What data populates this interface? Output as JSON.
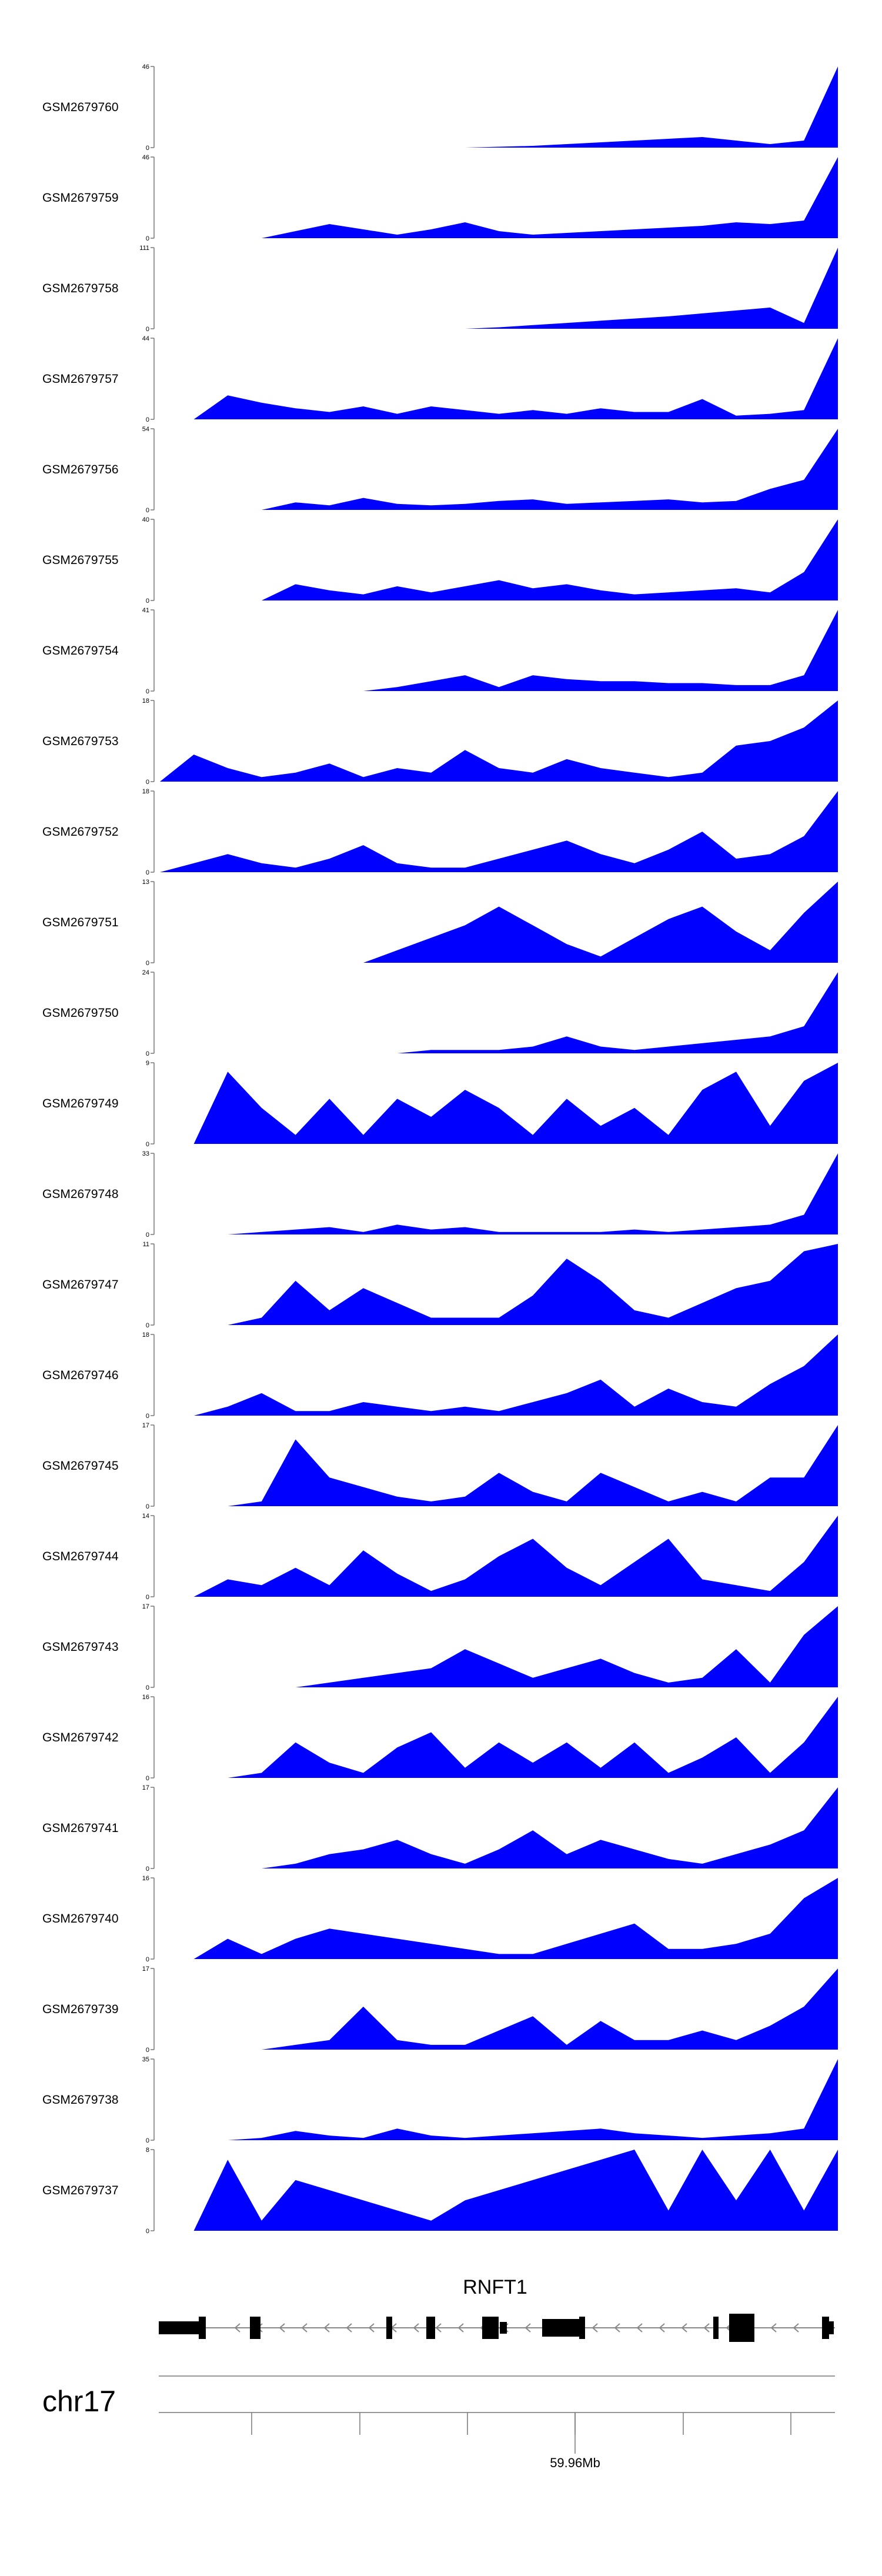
{
  "chart_data": {
    "type": "area",
    "fill_color": "#0000ff",
    "x": [
      0,
      5,
      10,
      15,
      20,
      25,
      30,
      35,
      40,
      45,
      50,
      55,
      60,
      65,
      70,
      75,
      80,
      85,
      90,
      95,
      100
    ],
    "tracks": [
      {
        "name": "GSM2679760",
        "ymax": "46",
        "ymin": "0",
        "values": [
          0,
          0,
          0,
          0,
          0,
          0,
          0,
          0,
          0,
          0,
          0.5,
          1,
          2,
          3,
          4,
          5,
          6,
          4,
          2,
          4,
          46
        ]
      },
      {
        "name": "GSM2679759",
        "ymax": "46",
        "ymin": "0",
        "values": [
          0,
          0,
          0,
          0,
          4,
          8,
          5,
          2,
          5,
          9,
          4,
          2,
          3,
          4,
          5,
          6,
          7,
          9,
          8,
          10,
          46
        ]
      },
      {
        "name": "GSM2679758",
        "ymax": "111",
        "ymin": "0",
        "values": [
          0,
          0,
          0,
          0,
          0,
          0,
          0,
          0,
          0,
          0,
          2,
          5,
          8,
          11,
          14,
          17,
          21,
          25,
          29,
          8,
          111
        ]
      },
      {
        "name": "GSM2679757",
        "ymax": "44",
        "ymin": "0",
        "values": [
          0,
          0,
          13,
          9,
          6,
          4,
          7,
          3,
          7,
          5,
          3,
          5,
          3,
          6,
          4,
          4,
          11,
          2,
          3,
          5,
          44
        ]
      },
      {
        "name": "GSM2679756",
        "ymax": "54",
        "ymin": "0",
        "values": [
          0,
          0,
          0,
          0,
          5,
          3,
          8,
          4,
          3,
          4,
          6,
          7,
          4,
          5,
          6,
          7,
          5,
          6,
          14,
          20,
          54
        ]
      },
      {
        "name": "GSM2679755",
        "ymax": "40",
        "ymin": "0",
        "values": [
          0,
          0,
          0,
          0,
          8,
          5,
          3,
          7,
          4,
          7,
          10,
          6,
          8,
          5,
          3,
          4,
          5,
          6,
          4,
          14,
          40
        ]
      },
      {
        "name": "GSM2679754",
        "ymax": "41",
        "ymin": "0",
        "values": [
          0,
          0,
          0,
          0,
          0,
          0,
          0,
          2,
          5,
          8,
          2,
          8,
          6,
          5,
          5,
          4,
          4,
          3,
          3,
          8,
          41
        ]
      },
      {
        "name": "GSM2679753",
        "ymax": "18",
        "ymin": "0",
        "values": [
          0,
          6,
          3,
          1,
          2,
          4,
          1,
          3,
          2,
          7,
          3,
          2,
          5,
          3,
          2,
          1,
          2,
          8,
          9,
          12,
          18
        ]
      },
      {
        "name": "GSM2679752",
        "ymax": "18",
        "ymin": "0",
        "values": [
          0,
          2,
          4,
          2,
          1,
          3,
          6,
          2,
          1,
          1,
          3,
          5,
          7,
          4,
          2,
          5,
          9,
          3,
          4,
          8,
          18
        ]
      },
      {
        "name": "GSM2679751",
        "ymax": "13",
        "ymin": "0",
        "values": [
          0,
          0,
          0,
          0,
          0,
          0,
          0,
          2,
          4,
          6,
          9,
          6,
          3,
          1,
          4,
          7,
          9,
          5,
          2,
          8,
          13
        ]
      },
      {
        "name": "GSM2679750",
        "ymax": "24",
        "ymin": "0",
        "values": [
          0,
          0,
          0,
          0,
          0,
          0,
          0,
          0,
          1,
          1,
          1,
          2,
          5,
          2,
          1,
          2,
          3,
          4,
          5,
          8,
          24
        ]
      },
      {
        "name": "GSM2679749",
        "ymax": "9",
        "ymin": "0",
        "values": [
          0,
          0,
          8,
          4,
          1,
          5,
          1,
          5,
          3,
          6,
          4,
          1,
          5,
          2,
          4,
          1,
          6,
          8,
          2,
          7,
          9
        ]
      },
      {
        "name": "GSM2679748",
        "ymax": "33",
        "ymin": "0",
        "values": [
          0,
          0,
          0,
          1,
          2,
          3,
          1,
          4,
          2,
          3,
          1,
          1,
          1,
          1,
          2,
          1,
          2,
          3,
          4,
          8,
          33
        ]
      },
      {
        "name": "GSM2679747",
        "ymax": "11",
        "ymin": "0",
        "values": [
          0,
          0,
          0,
          1,
          6,
          2,
          5,
          3,
          1,
          1,
          1,
          4,
          9,
          6,
          2,
          1,
          3,
          5,
          6,
          10,
          11
        ]
      },
      {
        "name": "GSM2679746",
        "ymax": "18",
        "ymin": "0",
        "values": [
          0,
          0,
          2,
          5,
          1,
          1,
          3,
          2,
          1,
          2,
          1,
          3,
          5,
          8,
          2,
          6,
          3,
          2,
          7,
          11,
          18
        ]
      },
      {
        "name": "GSM2679745",
        "ymax": "17",
        "ymin": "0",
        "values": [
          0,
          0,
          0,
          1,
          14,
          6,
          4,
          2,
          1,
          2,
          7,
          3,
          1,
          7,
          4,
          1,
          3,
          1,
          6,
          6,
          17
        ]
      },
      {
        "name": "GSM2679744",
        "ymax": "14",
        "ymin": "0",
        "values": [
          0,
          0,
          3,
          2,
          5,
          2,
          8,
          4,
          1,
          3,
          7,
          10,
          5,
          2,
          6,
          10,
          3,
          2,
          1,
          6,
          14
        ]
      },
      {
        "name": "GSM2679743",
        "ymax": "17",
        "ymin": "0",
        "values": [
          0,
          0,
          0,
          0,
          0,
          1,
          2,
          3,
          4,
          8,
          5,
          2,
          4,
          6,
          3,
          1,
          2,
          8,
          1,
          11,
          17
        ]
      },
      {
        "name": "GSM2679742",
        "ymax": "16",
        "ymin": "0",
        "values": [
          0,
          0,
          0,
          1,
          7,
          3,
          1,
          6,
          9,
          2,
          7,
          3,
          7,
          2,
          7,
          1,
          4,
          8,
          1,
          7,
          16
        ]
      },
      {
        "name": "GSM2679741",
        "ymax": "17",
        "ymin": "0",
        "values": [
          0,
          0,
          0,
          0,
          1,
          3,
          4,
          6,
          3,
          1,
          4,
          8,
          3,
          6,
          4,
          2,
          1,
          3,
          5,
          8,
          17
        ]
      },
      {
        "name": "GSM2679740",
        "ymax": "16",
        "ymin": "0",
        "values": [
          0,
          0,
          4,
          1,
          4,
          6,
          5,
          4,
          3,
          2,
          1,
          1,
          3,
          5,
          7,
          2,
          2,
          3,
          5,
          12,
          16
        ]
      },
      {
        "name": "GSM2679739",
        "ymax": "17",
        "ymin": "0",
        "values": [
          0,
          0,
          0,
          0,
          1,
          2,
          9,
          2,
          1,
          1,
          4,
          7,
          1,
          6,
          2,
          2,
          4,
          2,
          5,
          9,
          17
        ]
      },
      {
        "name": "GSM2679738",
        "ymax": "35",
        "ymin": "0",
        "values": [
          0,
          0,
          0,
          1,
          4,
          2,
          1,
          5,
          2,
          1,
          2,
          3,
          4,
          5,
          3,
          2,
          1,
          2,
          3,
          5,
          35
        ]
      },
      {
        "name": "GSM2679737",
        "ymax": "8",
        "ymin": "0",
        "values": [
          0,
          0,
          7,
          1,
          5,
          4,
          3,
          2,
          1,
          3,
          4,
          5,
          6,
          7,
          8,
          2,
          8,
          3,
          8,
          2,
          8
        ]
      }
    ],
    "gene": {
      "name": "RNFT1",
      "strand": "-"
    },
    "chromosome": "chr17",
    "position_label": "59.96Mb"
  }
}
